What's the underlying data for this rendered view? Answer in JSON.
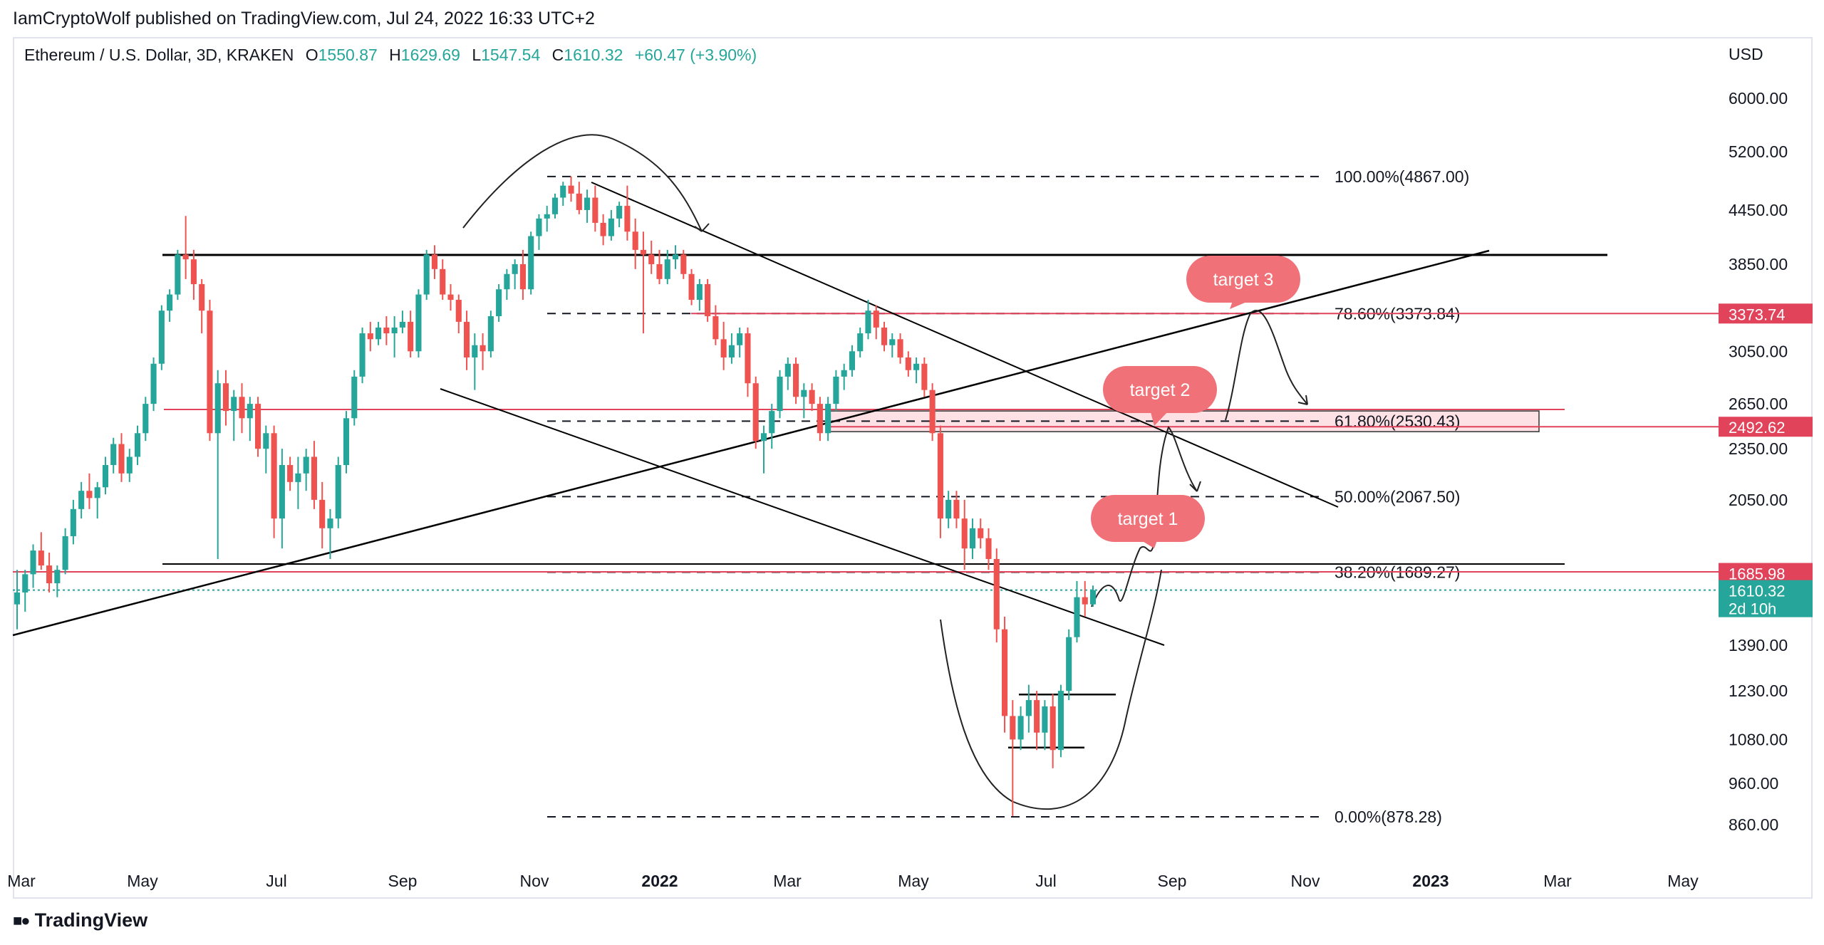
{
  "publisher": "IamCryptoWolf published on TradingView.com, Jul 24, 2022 16:33 UTC+2",
  "header": {
    "symbol": "Ethereum / U.S. Dollar, 3D, KRAKEN",
    "o_label": "O",
    "o_value": "1550.87",
    "h_label": "H",
    "h_value": "1629.69",
    "l_label": "L",
    "l_value": "1547.54",
    "c_label": "C",
    "c_value": "1610.32",
    "change": "+60.47 (+3.90%)"
  },
  "currency": "USD",
  "footer_brand": "TradingView",
  "colors": {
    "up": "#26a69a",
    "down": "#ef5350",
    "red_line": "#e0435a",
    "target_fill": "#f07178",
    "zone_fill": "#fde1e4"
  },
  "chart_data": {
    "type": "candlestick",
    "interval": "3D",
    "y_ticks": [
      "6000.00",
      "5200.00",
      "4450.00",
      "3850.00",
      "3050.00",
      "2650.00",
      "2350.00",
      "2050.00",
      "1390.00",
      "1230.00",
      "1080.00",
      "960.00",
      "860.00"
    ],
    "y_scale": "log",
    "x_ticks": [
      "Mar",
      "May",
      "Jul",
      "Sep",
      "Nov",
      "2022",
      "Mar",
      "May",
      "Jul",
      "Sep",
      "Nov",
      "2023",
      "Mar",
      "May"
    ],
    "price_badges": [
      {
        "value": "3373.74",
        "color": "#e0435a"
      },
      {
        "value": "2492.62",
        "color": "#e0435a"
      },
      {
        "value": "1685.98",
        "color": "#e0435a"
      },
      {
        "value": "1610.32",
        "sub": "2d 10h",
        "color": "#26a69a"
      }
    ],
    "fib_levels": [
      {
        "label": "100.00%(4867.00)",
        "price": 4867.0
      },
      {
        "label": "78.60%(3373.84)",
        "price": 3373.84
      },
      {
        "label": "61.80%(2530.43)",
        "price": 2530.43
      },
      {
        "label": "50.00%(2067.50)",
        "price": 2067.5
      },
      {
        "label": "38.20%(1689.27)",
        "price": 1689.27
      },
      {
        "label": "0.00%(878.28)",
        "price": 878.28
      }
    ],
    "targets": [
      "target 1",
      "target 2",
      "target 3"
    ],
    "candles": [
      [
        1550,
        1700,
        1450,
        1600
      ],
      [
        1600,
        1700,
        1520,
        1680
      ],
      [
        1680,
        1820,
        1620,
        1790
      ],
      [
        1790,
        1880,
        1700,
        1720
      ],
      [
        1720,
        1780,
        1600,
        1640
      ],
      [
        1640,
        1720,
        1580,
        1700
      ],
      [
        1700,
        1900,
        1680,
        1860
      ],
      [
        1860,
        2050,
        1820,
        2000
      ],
      [
        2000,
        2150,
        1950,
        2100
      ],
      [
        2100,
        2200,
        2000,
        2060
      ],
      [
        2060,
        2150,
        1950,
        2120
      ],
      [
        2120,
        2300,
        2080,
        2250
      ],
      [
        2250,
        2420,
        2200,
        2380
      ],
      [
        2380,
        2450,
        2150,
        2200
      ],
      [
        2200,
        2350,
        2150,
        2300
      ],
      [
        2300,
        2500,
        2250,
        2450
      ],
      [
        2450,
        2700,
        2400,
        2650
      ],
      [
        2650,
        3000,
        2600,
        2950
      ],
      [
        2950,
        3450,
        2900,
        3400
      ],
      [
        3400,
        3600,
        3300,
        3550
      ],
      [
        3550,
        4000,
        3500,
        3950
      ],
      [
        3950,
        4380,
        3700,
        3900
      ],
      [
        3900,
        4000,
        3500,
        3650
      ],
      [
        3650,
        3700,
        3200,
        3400
      ],
      [
        3400,
        3500,
        2400,
        2450
      ],
      [
        2450,
        2900,
        1750,
        2800
      ],
      [
        2800,
        2900,
        2500,
        2600
      ],
      [
        2600,
        2750,
        2400,
        2700
      ],
      [
        2700,
        2800,
        2450,
        2550
      ],
      [
        2550,
        2700,
        2400,
        2650
      ],
      [
        2650,
        2700,
        2300,
        2350
      ],
      [
        2350,
        2500,
        2200,
        2450
      ],
      [
        2450,
        2500,
        1850,
        1950
      ],
      [
        1950,
        2350,
        1800,
        2250
      ],
      [
        2250,
        2300,
        2100,
        2150
      ],
      [
        2150,
        2300,
        2000,
        2200
      ],
      [
        2200,
        2350,
        2100,
        2300
      ],
      [
        2300,
        2400,
        2000,
        2050
      ],
      [
        2050,
        2150,
        1800,
        1900
      ],
      [
        1900,
        2000,
        1750,
        1950
      ],
      [
        1950,
        2300,
        1900,
        2250
      ],
      [
        2250,
        2600,
        2200,
        2550
      ],
      [
        2550,
        2900,
        2500,
        2850
      ],
      [
        2850,
        3250,
        2800,
        3200
      ],
      [
        3200,
        3300,
        3050,
        3150
      ],
      [
        3150,
        3300,
        3100,
        3250
      ],
      [
        3250,
        3350,
        3100,
        3200
      ],
      [
        3200,
        3350,
        3000,
        3250
      ],
      [
        3250,
        3400,
        3200,
        3300
      ],
      [
        3300,
        3400,
        3000,
        3050
      ],
      [
        3050,
        3600,
        3000,
        3550
      ],
      [
        3550,
        4000,
        3500,
        3950
      ],
      [
        3950,
        4050,
        3700,
        3800
      ],
      [
        3800,
        3900,
        3500,
        3550
      ],
      [
        3550,
        3650,
        3400,
        3500
      ],
      [
        3500,
        3550,
        3200,
        3300
      ],
      [
        3300,
        3400,
        2900,
        3000
      ],
      [
        3000,
        3200,
        2750,
        3100
      ],
      [
        3100,
        3200,
        2900,
        3050
      ],
      [
        3050,
        3400,
        3000,
        3350
      ],
      [
        3350,
        3650,
        3300,
        3600
      ],
      [
        3600,
        3800,
        3500,
        3750
      ],
      [
        3750,
        3900,
        3600,
        3850
      ],
      [
        3850,
        4000,
        3500,
        3600
      ],
      [
        3600,
        4200,
        3550,
        4150
      ],
      [
        4150,
        4400,
        4000,
        4350
      ],
      [
        4350,
        4500,
        4200,
        4400
      ],
      [
        4400,
        4650,
        4350,
        4600
      ],
      [
        4600,
        4800,
        4500,
        4750
      ],
      [
        4750,
        4870,
        4550,
        4650
      ],
      [
        4650,
        4800,
        4400,
        4450
      ],
      [
        4450,
        4700,
        4300,
        4600
      ],
      [
        4600,
        4750,
        4200,
        4300
      ],
      [
        4300,
        4400,
        4050,
        4150
      ],
      [
        4150,
        4450,
        4100,
        4350
      ],
      [
        4350,
        4550,
        4250,
        4500
      ],
      [
        4500,
        4750,
        4100,
        4200
      ],
      [
        4200,
        4350,
        3800,
        4000
      ],
      [
        4000,
        4200,
        3200,
        3950
      ],
      [
        3950,
        4100,
        3750,
        3850
      ],
      [
        3850,
        4000,
        3650,
        3700
      ],
      [
        3700,
        4000,
        3650,
        3900
      ],
      [
        3900,
        4050,
        3800,
        3950
      ],
      [
        3950,
        4000,
        3700,
        3750
      ],
      [
        3750,
        3800,
        3450,
        3500
      ],
      [
        3500,
        3700,
        3400,
        3650
      ],
      [
        3650,
        3700,
        3300,
        3350
      ],
      [
        3350,
        3450,
        3100,
        3150
      ],
      [
        3150,
        3300,
        2900,
        3000
      ],
      [
        3000,
        3200,
        2950,
        3100
      ],
      [
        3100,
        3250,
        3000,
        3200
      ],
      [
        3200,
        3250,
        2700,
        2800
      ],
      [
        2800,
        2850,
        2350,
        2400
      ],
      [
        2400,
        2500,
        2200,
        2450
      ],
      [
        2450,
        2650,
        2350,
        2600
      ],
      [
        2600,
        2900,
        2550,
        2850
      ],
      [
        2850,
        3000,
        2750,
        2950
      ],
      [
        2950,
        3000,
        2650,
        2700
      ],
      [
        2700,
        2800,
        2550,
        2750
      ],
      [
        2750,
        2800,
        2600,
        2650
      ],
      [
        2650,
        2700,
        2400,
        2450
      ],
      [
        2450,
        2700,
        2400,
        2650
      ],
      [
        2650,
        2900,
        2600,
        2850
      ],
      [
        2850,
        2950,
        2750,
        2900
      ],
      [
        2900,
        3100,
        2850,
        3050
      ],
      [
        3050,
        3250,
        3000,
        3200
      ],
      [
        3200,
        3500,
        3150,
        3400
      ],
      [
        3400,
        3450,
        3150,
        3250
      ],
      [
        3250,
        3300,
        3050,
        3100
      ],
      [
        3100,
        3200,
        3000,
        3150
      ],
      [
        3150,
        3200,
        2950,
        3000
      ],
      [
        3000,
        3050,
        2850,
        2900
      ],
      [
        2900,
        3000,
        2800,
        2950
      ],
      [
        2950,
        3000,
        2700,
        2750
      ],
      [
        2750,
        2800,
        2400,
        2450
      ],
      [
        2450,
        2500,
        1850,
        1950
      ],
      [
        1950,
        2100,
        1900,
        2050
      ],
      [
        2050,
        2100,
        1900,
        1950
      ],
      [
        1950,
        2050,
        1700,
        1800
      ],
      [
        1800,
        1950,
        1750,
        1900
      ],
      [
        1900,
        1950,
        1800,
        1850
      ],
      [
        1850,
        1900,
        1700,
        1750
      ],
      [
        1750,
        1800,
        1400,
        1450
      ],
      [
        1450,
        1500,
        1100,
        1150
      ],
      [
        1150,
        1200,
        880,
        1080
      ],
      [
        1080,
        1180,
        1050,
        1150
      ],
      [
        1150,
        1250,
        1100,
        1200
      ],
      [
        1200,
        1230,
        1050,
        1100
      ],
      [
        1100,
        1200,
        1050,
        1180
      ],
      [
        1180,
        1220,
        1000,
        1050
      ],
      [
        1050,
        1250,
        1030,
        1230
      ],
      [
        1230,
        1450,
        1200,
        1420
      ],
      [
        1420,
        1650,
        1400,
        1580
      ],
      [
        1580,
        1650,
        1500,
        1550
      ],
      [
        1550,
        1630,
        1540,
        1610
      ]
    ]
  }
}
